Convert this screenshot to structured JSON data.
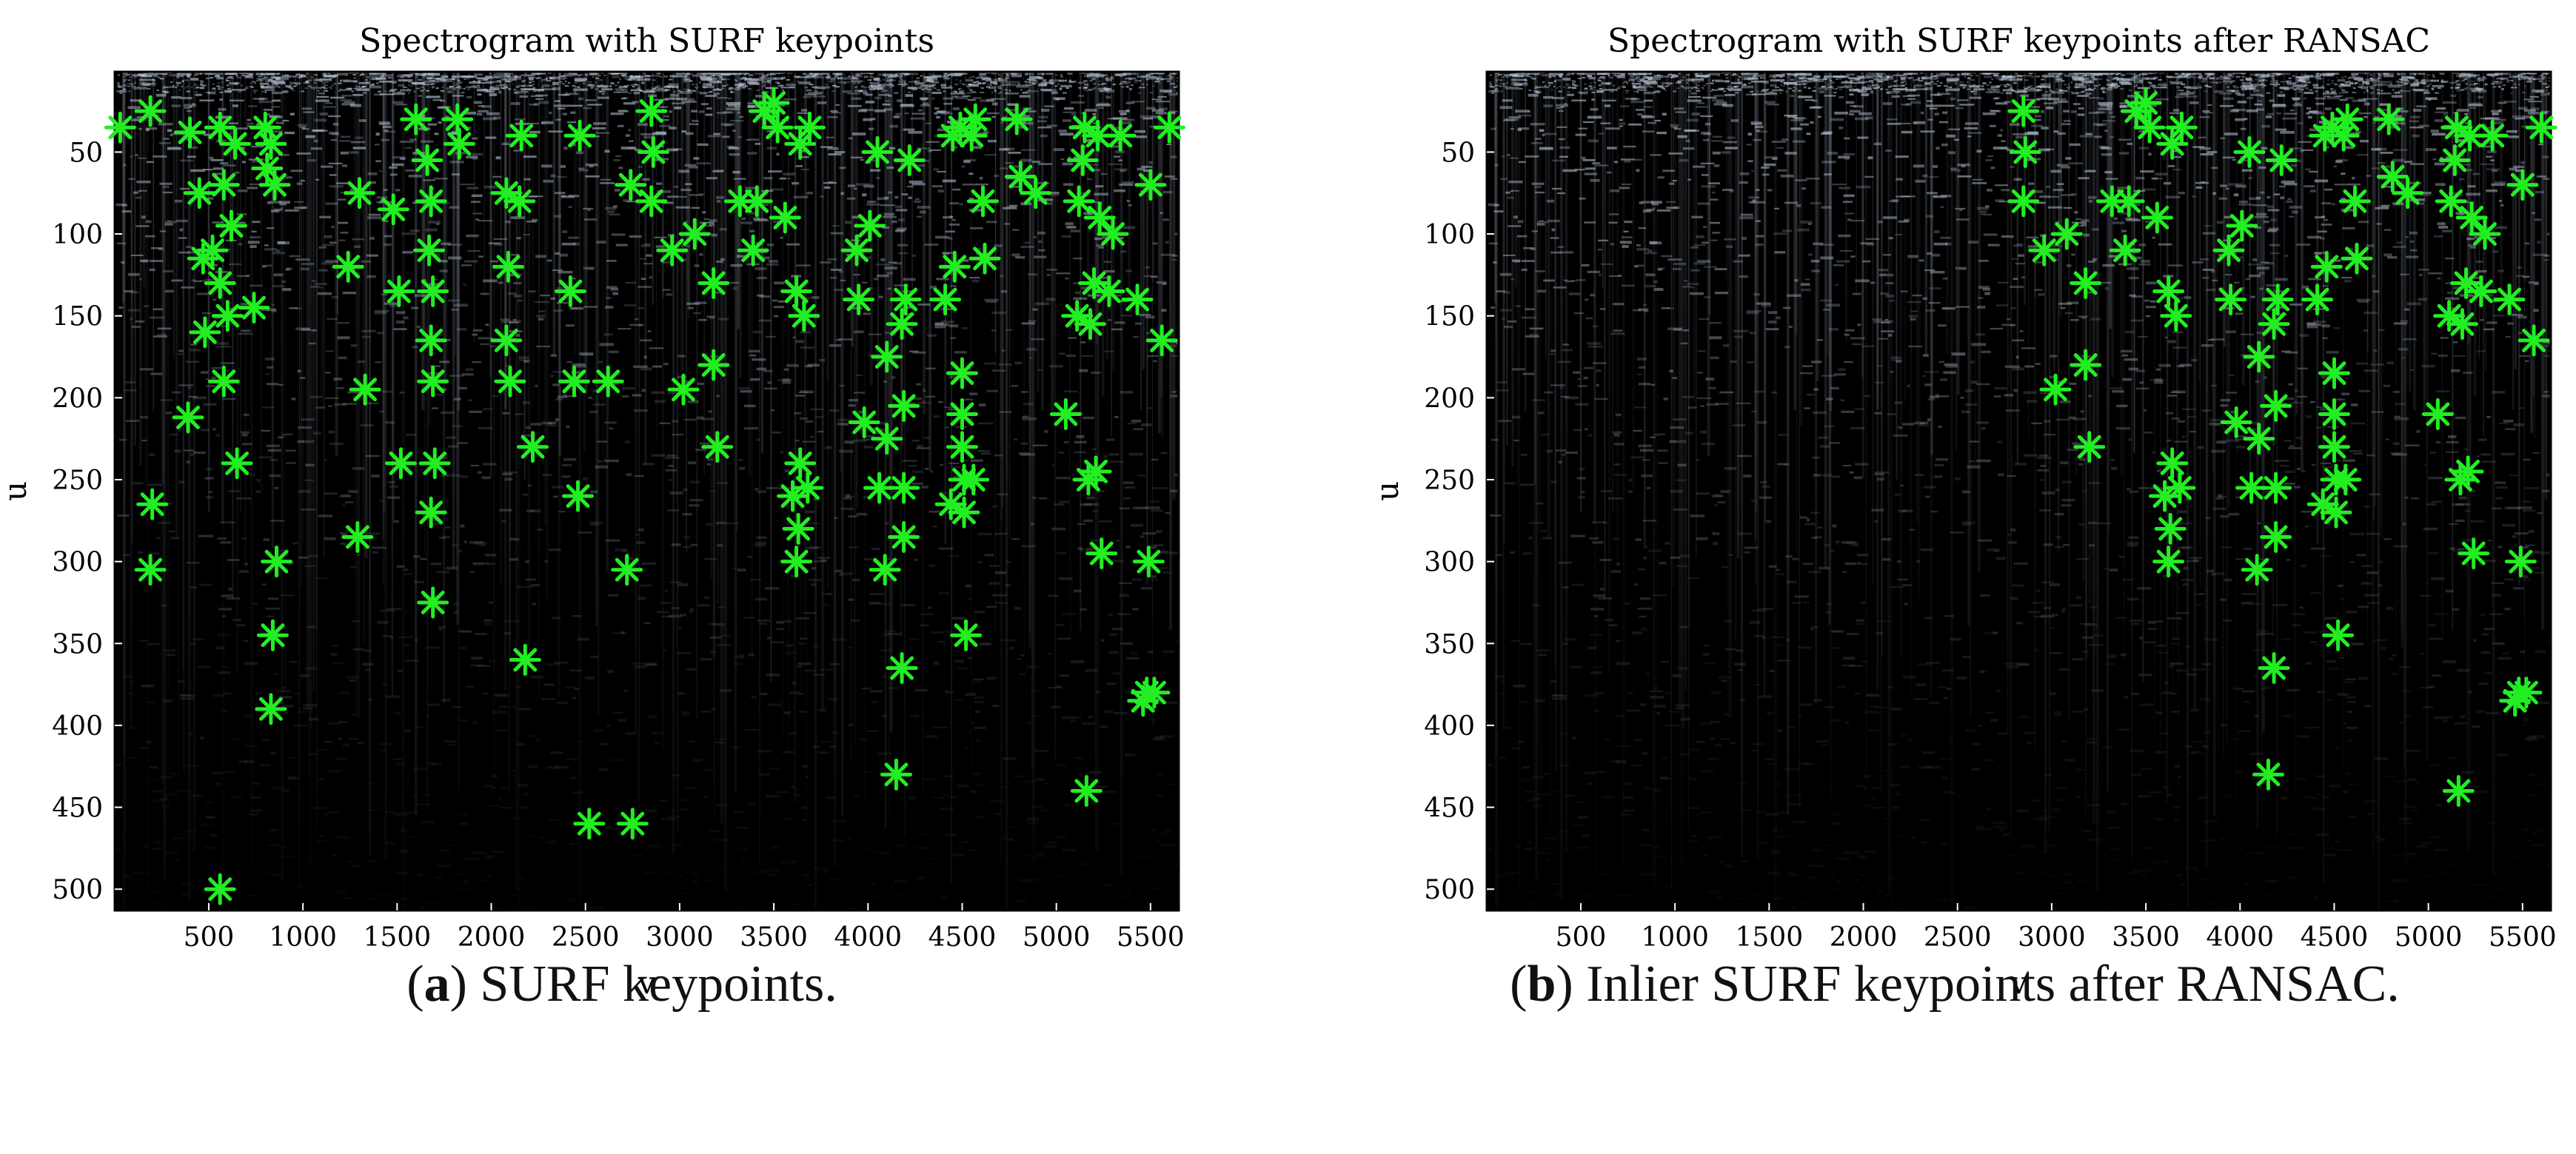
{
  "colors": {
    "background": "#000000",
    "stripe": "#b8c4d6",
    "keypoint": "#22ee22"
  },
  "chart_data": [
    {
      "type": "scatter",
      "title": "Spectrogram with SURF keypoints",
      "xlabel": "v",
      "ylabel": "u",
      "xlim": [
        1,
        5650
      ],
      "ylim": [
        513,
        1
      ],
      "y_axis_inverted": true,
      "background": "spectrogram image",
      "xticks": [
        500,
        1000,
        1500,
        2000,
        2500,
        3000,
        3500,
        4000,
        4500,
        5000,
        5500
      ],
      "yticks": [
        50,
        100,
        150,
        200,
        250,
        300,
        350,
        400,
        450,
        500
      ],
      "marker": "asterisk",
      "caption_label": "a",
      "caption_text": ") SURF keypoints.",
      "points": [
        [
          30,
          35
        ],
        [
          190,
          25
        ],
        [
          400,
          38
        ],
        [
          450,
          75
        ],
        [
          470,
          115
        ],
        [
          480,
          160
        ],
        [
          520,
          110
        ],
        [
          560,
          35
        ],
        [
          580,
          70
        ],
        [
          560,
          130
        ],
        [
          600,
          150
        ],
        [
          580,
          190
        ],
        [
          620,
          95
        ],
        [
          640,
          45
        ],
        [
          560,
          500
        ],
        [
          650,
          240
        ],
        [
          740,
          145
        ],
        [
          800,
          35
        ],
        [
          810,
          60
        ],
        [
          830,
          45
        ],
        [
          850,
          70
        ],
        [
          860,
          300
        ],
        [
          840,
          345
        ],
        [
          830,
          390
        ],
        [
          390,
          212
        ],
        [
          200,
          265
        ],
        [
          190,
          305
        ],
        [
          1240,
          120
        ],
        [
          1300,
          75
        ],
        [
          1330,
          195
        ],
        [
          1290,
          285
        ],
        [
          1480,
          85
        ],
        [
          1510,
          135
        ],
        [
          1520,
          240
        ],
        [
          1600,
          30
        ],
        [
          1660,
          55
        ],
        [
          1680,
          80
        ],
        [
          1670,
          110
        ],
        [
          1690,
          135
        ],
        [
          1680,
          165
        ],
        [
          1690,
          190
        ],
        [
          1700,
          240
        ],
        [
          1680,
          270
        ],
        [
          1690,
          325
        ],
        [
          1820,
          30
        ],
        [
          1830,
          45
        ],
        [
          2080,
          75
        ],
        [
          2090,
          120
        ],
        [
          2080,
          165
        ],
        [
          2100,
          190
        ],
        [
          2160,
          40
        ],
        [
          2150,
          80
        ],
        [
          2180,
          360
        ],
        [
          2220,
          230
        ],
        [
          2420,
          135
        ],
        [
          2440,
          190
        ],
        [
          2460,
          260
        ],
        [
          2470,
          40
        ],
        [
          2520,
          460
        ],
        [
          2620,
          190
        ],
        [
          2720,
          305
        ],
        [
          2750,
          460
        ],
        [
          2740,
          70
        ],
        [
          2850,
          25
        ],
        [
          2860,
          50
        ],
        [
          2850,
          80
        ],
        [
          2960,
          110
        ],
        [
          3020,
          195
        ],
        [
          3080,
          100
        ],
        [
          3180,
          130
        ],
        [
          3180,
          180
        ],
        [
          3200,
          230
        ],
        [
          3320,
          80
        ],
        [
          3390,
          110
        ],
        [
          3410,
          80
        ],
        [
          3450,
          25
        ],
        [
          3500,
          20
        ],
        [
          3520,
          35
        ],
        [
          3560,
          90
        ],
        [
          3600,
          260
        ],
        [
          3620,
          300
        ],
        [
          3640,
          240
        ],
        [
          3630,
          280
        ],
        [
          3620,
          135
        ],
        [
          3660,
          150
        ],
        [
          3680,
          255
        ],
        [
          3640,
          45
        ],
        [
          3690,
          35
        ],
        [
          3940,
          110
        ],
        [
          3950,
          140
        ],
        [
          3980,
          215
        ],
        [
          4010,
          95
        ],
        [
          4050,
          50
        ],
        [
          4060,
          255
        ],
        [
          4090,
          305
        ],
        [
          4100,
          225
        ],
        [
          4100,
          175
        ],
        [
          4150,
          430
        ],
        [
          4180,
          365
        ],
        [
          4190,
          285
        ],
        [
          4190,
          255
        ],
        [
          4190,
          205
        ],
        [
          4180,
          155
        ],
        [
          4200,
          140
        ],
        [
          4220,
          55
        ],
        [
          4410,
          140
        ],
        [
          4440,
          265
        ],
        [
          4450,
          40
        ],
        [
          4460,
          120
        ],
        [
          4490,
          35
        ],
        [
          4500,
          185
        ],
        [
          4500,
          210
        ],
        [
          4500,
          230
        ],
        [
          4510,
          250
        ],
        [
          4510,
          270
        ],
        [
          4520,
          345
        ],
        [
          4550,
          40
        ],
        [
          4560,
          250
        ],
        [
          4570,
          30
        ],
        [
          4610,
          80
        ],
        [
          4620,
          115
        ],
        [
          4790,
          30
        ],
        [
          4810,
          65
        ],
        [
          4890,
          75
        ],
        [
          5050,
          210
        ],
        [
          5110,
          150
        ],
        [
          5120,
          80
        ],
        [
          5140,
          55
        ],
        [
          5150,
          35
        ],
        [
          5160,
          440
        ],
        [
          5170,
          250
        ],
        [
          5180,
          155
        ],
        [
          5200,
          130
        ],
        [
          5210,
          245
        ],
        [
          5220,
          40
        ],
        [
          5230,
          90
        ],
        [
          5240,
          295
        ],
        [
          5280,
          135
        ],
        [
          5300,
          100
        ],
        [
          5340,
          40
        ],
        [
          5430,
          140
        ],
        [
          5460,
          385
        ],
        [
          5480,
          380
        ],
        [
          5490,
          300
        ],
        [
          5500,
          70
        ],
        [
          5520,
          380
        ],
        [
          5560,
          165
        ],
        [
          5600,
          35
        ]
      ]
    },
    {
      "type": "scatter",
      "title": "Spectrogram with SURF keypoints after RANSAC",
      "xlabel": "v",
      "ylabel": "u",
      "xlim": [
        1,
        5650
      ],
      "ylim": [
        513,
        1
      ],
      "y_axis_inverted": true,
      "background": "spectrogram image",
      "xticks": [
        500,
        1000,
        1500,
        2000,
        2500,
        3000,
        3500,
        4000,
        4500,
        5000,
        5500
      ],
      "yticks": [
        50,
        100,
        150,
        200,
        250,
        300,
        350,
        400,
        450,
        500
      ],
      "marker": "asterisk",
      "caption_label": "b",
      "caption_text": ") Inlier SURF keypoints after RANSAC.",
      "points": [
        [
          2850,
          25
        ],
        [
          2860,
          50
        ],
        [
          2850,
          80
        ],
        [
          2960,
          110
        ],
        [
          3020,
          195
        ],
        [
          3080,
          100
        ],
        [
          3180,
          130
        ],
        [
          3180,
          180
        ],
        [
          3200,
          230
        ],
        [
          3320,
          80
        ],
        [
          3390,
          110
        ],
        [
          3410,
          80
        ],
        [
          3450,
          25
        ],
        [
          3500,
          20
        ],
        [
          3520,
          35
        ],
        [
          3560,
          90
        ],
        [
          3600,
          260
        ],
        [
          3620,
          300
        ],
        [
          3640,
          240
        ],
        [
          3630,
          280
        ],
        [
          3620,
          135
        ],
        [
          3660,
          150
        ],
        [
          3680,
          255
        ],
        [
          3640,
          45
        ],
        [
          3690,
          35
        ],
        [
          3940,
          110
        ],
        [
          3950,
          140
        ],
        [
          3980,
          215
        ],
        [
          4010,
          95
        ],
        [
          4050,
          50
        ],
        [
          4060,
          255
        ],
        [
          4090,
          305
        ],
        [
          4100,
          225
        ],
        [
          4100,
          175
        ],
        [
          4150,
          430
        ],
        [
          4180,
          365
        ],
        [
          4190,
          285
        ],
        [
          4190,
          255
        ],
        [
          4190,
          205
        ],
        [
          4180,
          155
        ],
        [
          4200,
          140
        ],
        [
          4220,
          55
        ],
        [
          4410,
          140
        ],
        [
          4440,
          265
        ],
        [
          4450,
          40
        ],
        [
          4460,
          120
        ],
        [
          4490,
          35
        ],
        [
          4500,
          185
        ],
        [
          4500,
          210
        ],
        [
          4500,
          230
        ],
        [
          4510,
          250
        ],
        [
          4510,
          270
        ],
        [
          4520,
          345
        ],
        [
          4550,
          40
        ],
        [
          4560,
          250
        ],
        [
          4570,
          30
        ],
        [
          4610,
          80
        ],
        [
          4620,
          115
        ],
        [
          4790,
          30
        ],
        [
          4810,
          65
        ],
        [
          4890,
          75
        ],
        [
          5050,
          210
        ],
        [
          5110,
          150
        ],
        [
          5120,
          80
        ],
        [
          5140,
          55
        ],
        [
          5150,
          35
        ],
        [
          5160,
          440
        ],
        [
          5170,
          250
        ],
        [
          5180,
          155
        ],
        [
          5200,
          130
        ],
        [
          5210,
          245
        ],
        [
          5220,
          40
        ],
        [
          5230,
          90
        ],
        [
          5240,
          295
        ],
        [
          5280,
          135
        ],
        [
          5300,
          100
        ],
        [
          5340,
          40
        ],
        [
          5430,
          140
        ],
        [
          5460,
          385
        ],
        [
          5480,
          380
        ],
        [
          5490,
          300
        ],
        [
          5500,
          70
        ],
        [
          5520,
          380
        ],
        [
          5560,
          165
        ],
        [
          5600,
          35
        ]
      ]
    }
  ]
}
